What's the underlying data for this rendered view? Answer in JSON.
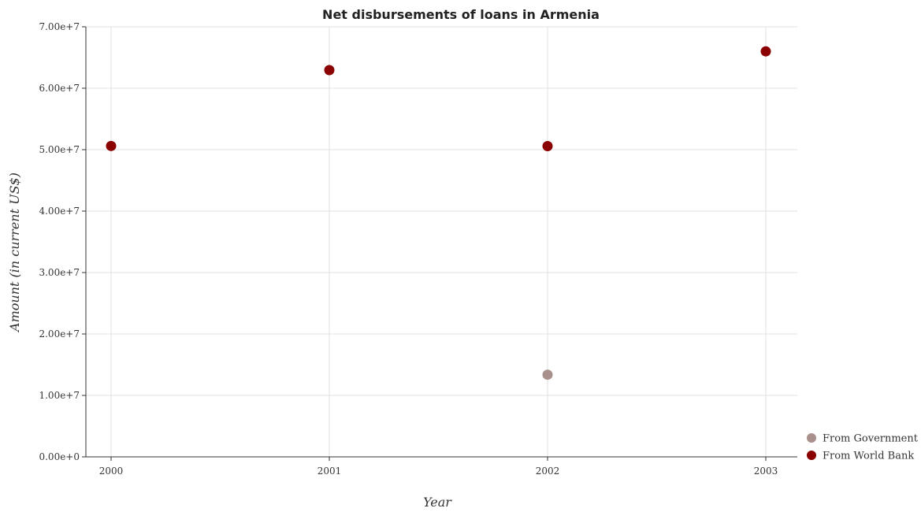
{
  "chart_data": {
    "type": "scatter",
    "title": "Net disbursements of loans in Armenia",
    "xlabel": "Year",
    "ylabel": "Amount (in current US$)",
    "categories": [
      "2000",
      "2001",
      "2002",
      "2003"
    ],
    "ylim": [
      0,
      70000000
    ],
    "yticks": [
      0,
      10000000,
      20000000,
      30000000,
      40000000,
      50000000,
      60000000,
      70000000
    ],
    "ytick_labels": [
      "0.00e+0",
      "1.00e+7",
      "2.00e+7",
      "3.00e+7",
      "4.00e+7",
      "5.00e+7",
      "6.00e+7",
      "7.00e+7"
    ],
    "grid": true,
    "legend_position": "bottom-right",
    "series": [
      {
        "name": "From Government",
        "color": "#a9908d",
        "values": [
          null,
          null,
          13370000,
          null
        ]
      },
      {
        "name": "From World Bank",
        "color": "#8b0000",
        "values": [
          50600000,
          62950000,
          50580000,
          66000000
        ]
      }
    ]
  }
}
